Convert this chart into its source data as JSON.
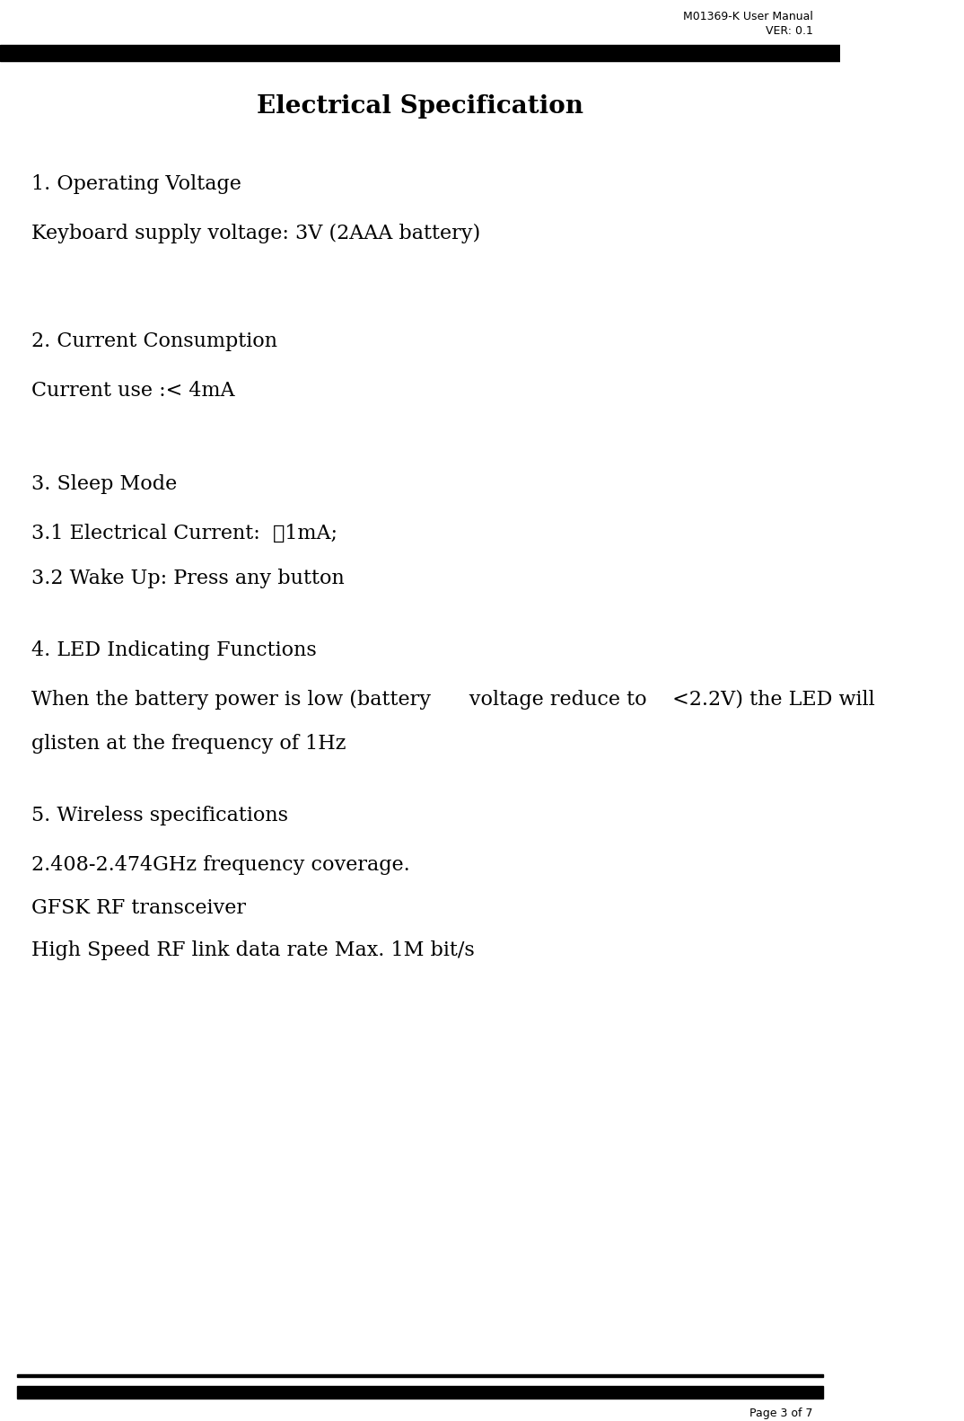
{
  "header_right_line1": "M01369-K User Manual",
  "header_right_line2": "VER: 0.1",
  "title": "Electrical Specification",
  "sections": [
    {
      "heading": "1. Operating Voltage",
      "lines": [
        "Keyboard supply voltage: 3V (2AAA battery)"
      ]
    },
    {
      "heading": "2. Current Consumption",
      "lines": [
        "Current use :< 4mA"
      ]
    },
    {
      "heading": "3. Sleep Mode",
      "lines": [
        "3.1 Electrical Current:  ＜1mA;",
        "3.2 Wake Up: Press any button"
      ]
    },
    {
      "heading": "4. LED Indicating Functions",
      "lines": [
        "When the battery power is low (battery      voltage reduce to    <2.2V) the LED will",
        "glisten at the frequency of 1Hz"
      ]
    },
    {
      "heading": "5. Wireless specifications",
      "lines": [
        "2.408-2.474GHz frequency coverage.",
        "GFSK RF transceiver",
        "High Speed RF link data rate Max. 1M bit/s"
      ]
    }
  ],
  "footer_text": "Page 3 of 7",
  "bg_color": "#ffffff",
  "text_color": "#000000",
  "header_font_size": 9,
  "title_font_size": 20,
  "heading_font_size": 16,
  "body_font_size": 16,
  "footer_font_size": 9
}
